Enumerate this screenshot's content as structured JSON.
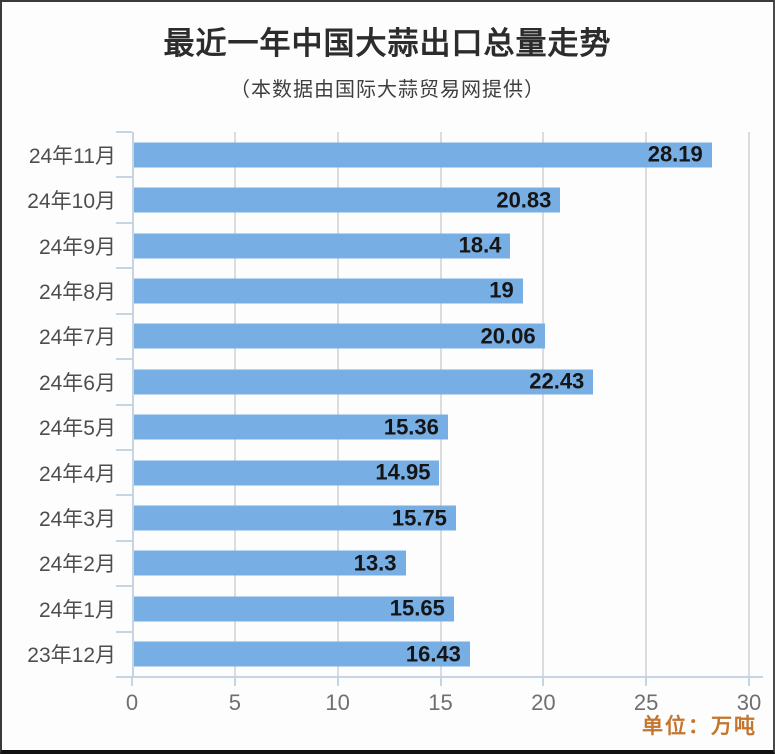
{
  "header": {
    "title": "最近一年中国大蒜出口总量走势",
    "subtitle": "（本数据由国际大蒜贸易网提供）"
  },
  "footer": {
    "unit": "单位：万吨"
  },
  "colors": {
    "bar": "#77AEE3",
    "axis": "#C7D5E3",
    "grid": "#DCDCDC",
    "value_label": "#151515",
    "category_label": "#4E4E4E",
    "tick_label": "#6F6F6F",
    "unit": "#C4752E",
    "background": "#FDFDFD"
  },
  "chart_data": {
    "type": "bar",
    "orientation": "horizontal",
    "title": "最近一年中国大蒜出口总量走势",
    "subtitle": "（本数据由国际大蒜贸易网提供）",
    "categories": [
      "24年11月",
      "24年10月",
      "24年9月",
      "24年8月",
      "24年7月",
      "24年6月",
      "24年5月",
      "24年4月",
      "24年3月",
      "24年2月",
      "24年1月",
      "23年12月"
    ],
    "values": [
      28.19,
      20.83,
      18.4,
      19,
      20.06,
      22.43,
      15.36,
      14.95,
      15.75,
      13.3,
      15.65,
      16.43
    ],
    "value_labels": [
      "28.19",
      "20.83",
      "18.4",
      "19",
      "20.06",
      "22.43",
      "15.36",
      "14.95",
      "15.75",
      "13.3",
      "15.65",
      "16.43"
    ],
    "xlabel": "",
    "ylabel": "",
    "unit": "万吨",
    "xlim": [
      0,
      30
    ],
    "x_ticks": [
      0,
      5,
      10,
      15,
      20,
      25,
      30
    ],
    "grid": true,
    "legend": false,
    "value_label_position": "inside-end"
  }
}
